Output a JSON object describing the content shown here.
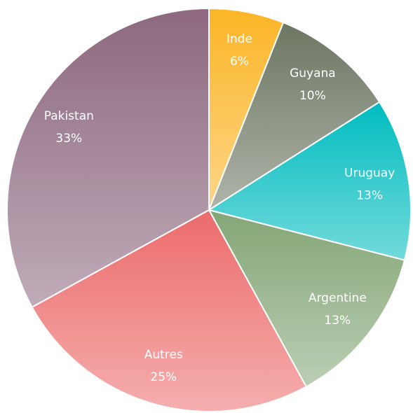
{
  "chart_data": {
    "type": "pie",
    "categories": [
      "Inde",
      "Guyana",
      "Uruguay",
      "Argentine",
      "Autres",
      "Pakistan"
    ],
    "values": [
      6,
      10,
      13,
      13,
      25,
      33
    ],
    "value_labels": [
      "6%",
      "10%",
      "13%",
      "13%",
      "25%",
      "33%"
    ],
    "colors": [
      "#fbb526",
      "#6c7662",
      "#00bcbf",
      "#83a676",
      "#ec6b6b",
      "#8d687e"
    ]
  }
}
